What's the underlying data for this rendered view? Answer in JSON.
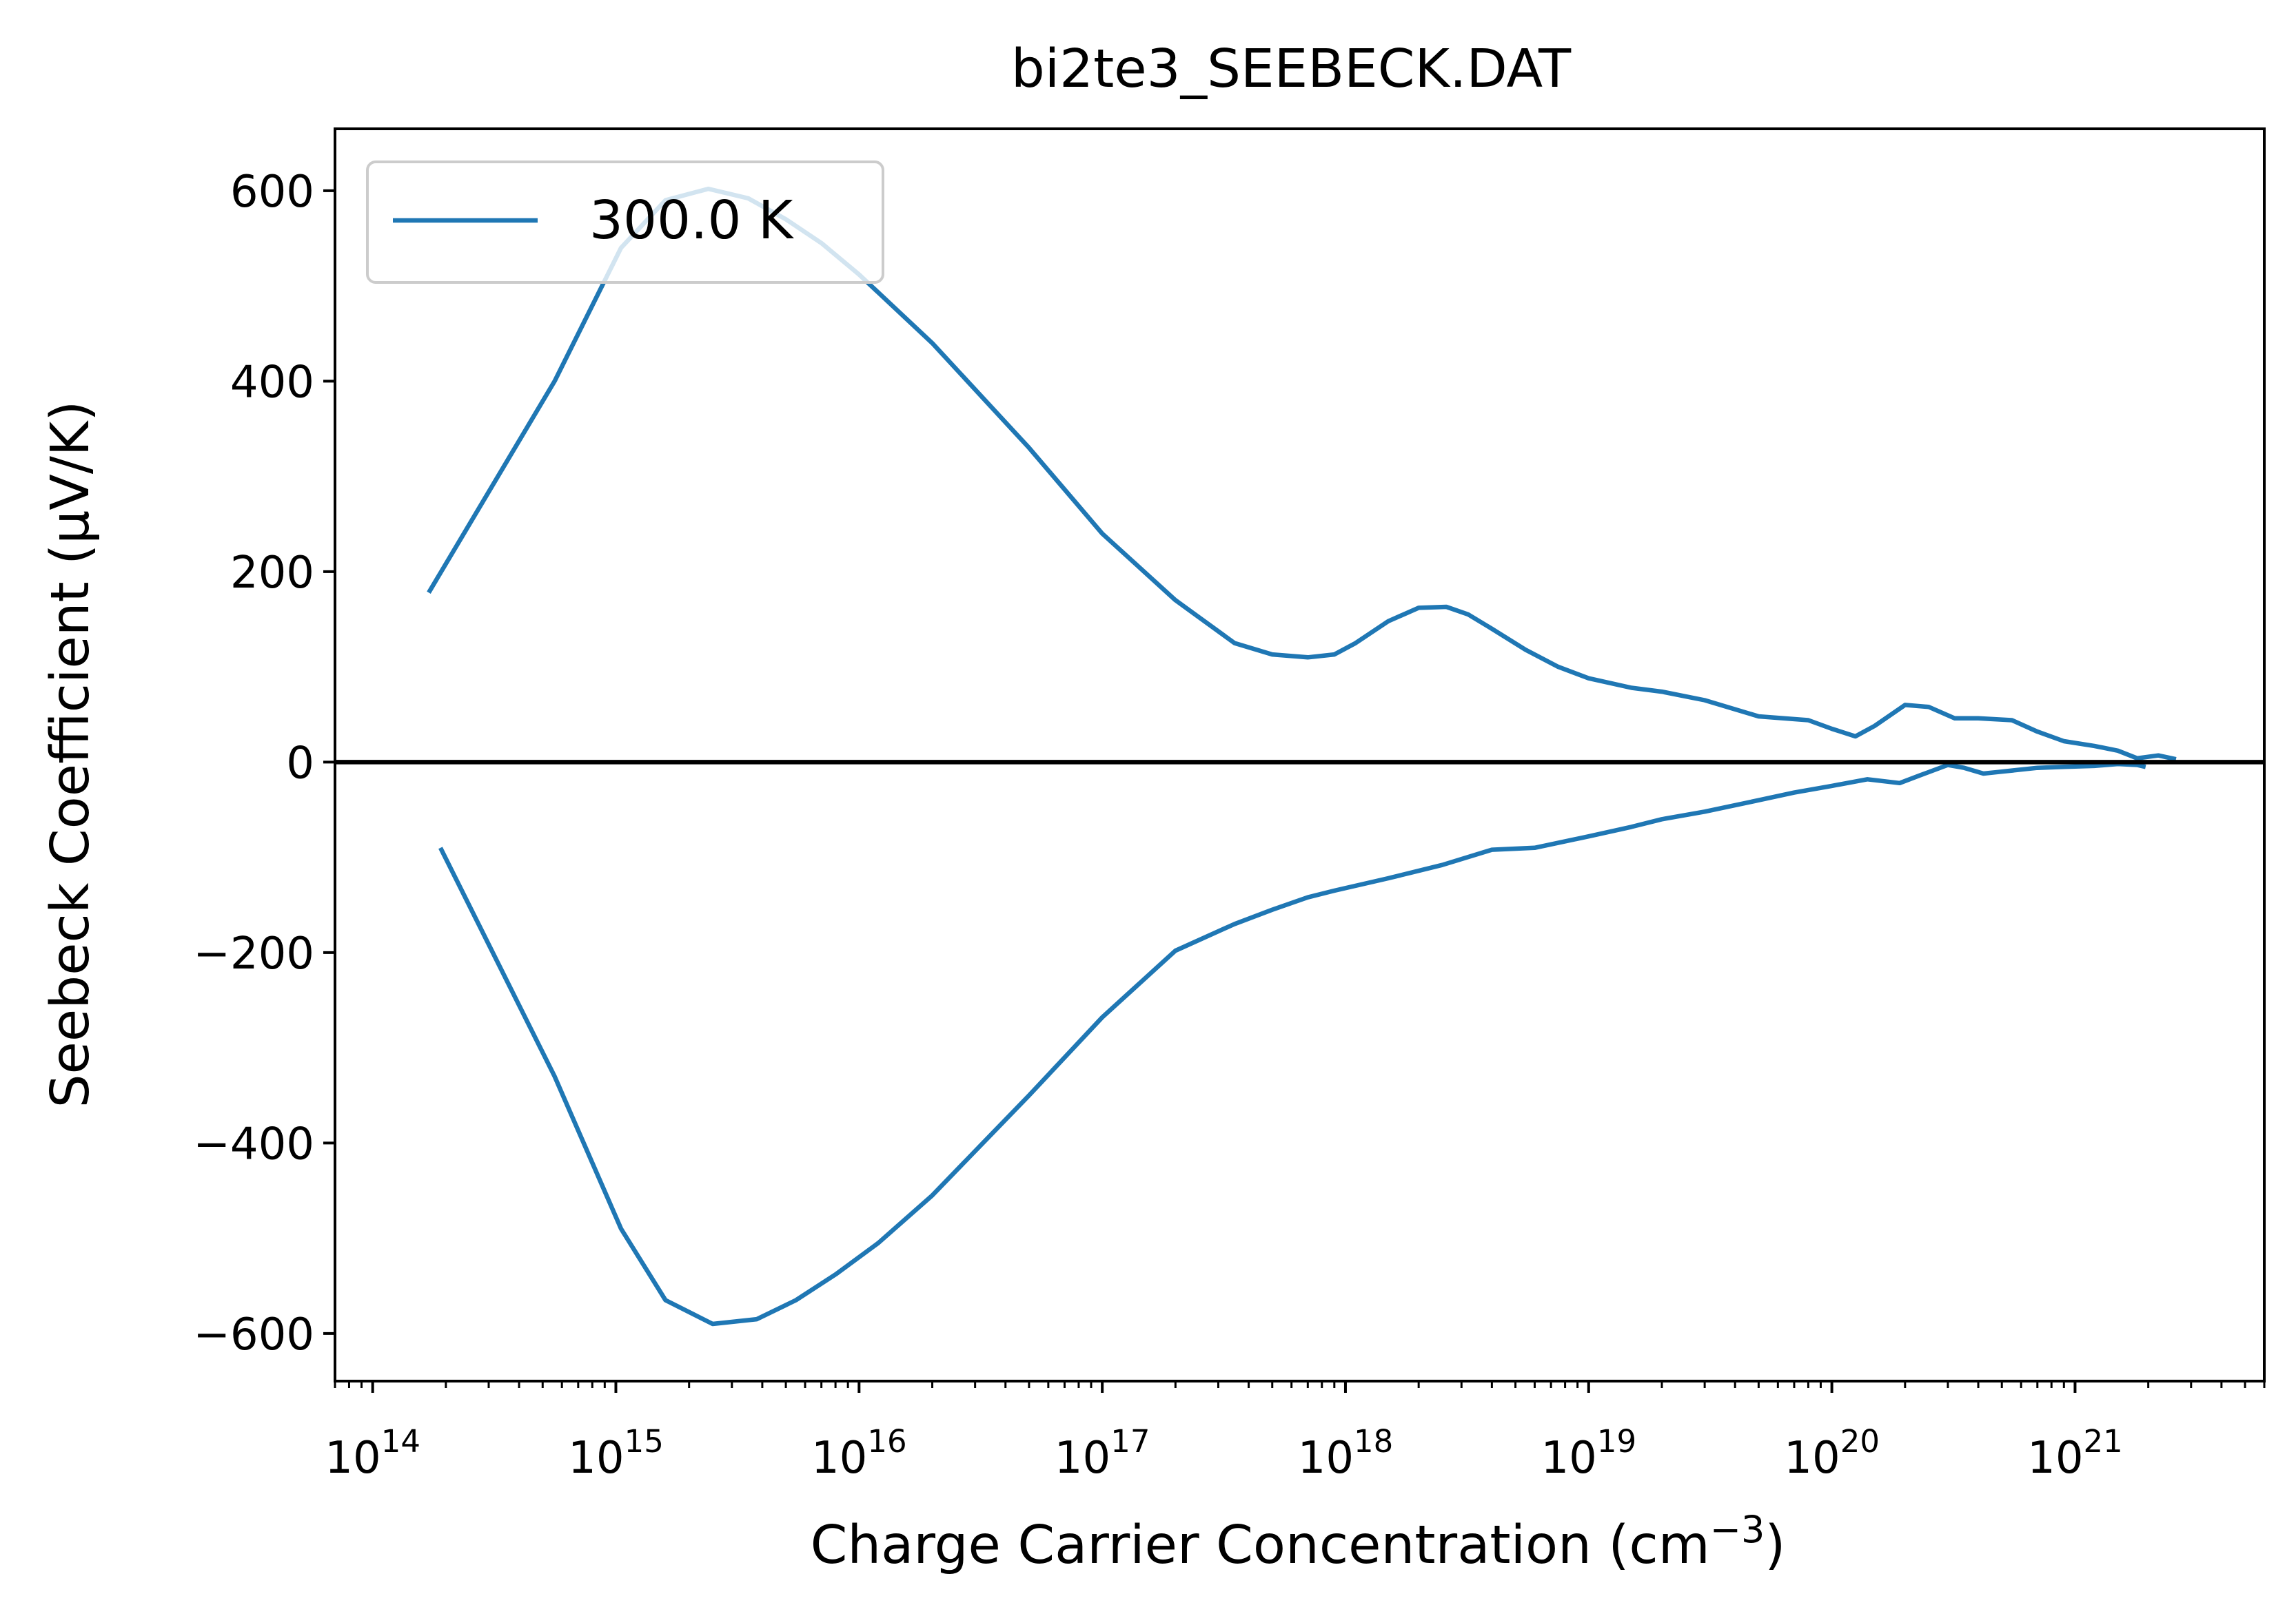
{
  "chart_data": {
    "type": "line",
    "title": "bi2te3_SEEBECK.DAT",
    "xlabel": "Charge Carrier Concentration (cm",
    "xlabel_sup": "−3",
    "xlabel_close": ")",
    "ylabel": "Seebeck Coefficient (μV/K)",
    "xscale": "log",
    "xlim": [
      70000000000000,
      6000000000000000000000
    ],
    "ylim": [
      -650,
      665
    ],
    "grid": false,
    "legend_position": "upper left",
    "x_major_ticks": [
      {
        "value": 100000000000000,
        "base": "10",
        "exp": "14"
      },
      {
        "value": 1000000000000000,
        "base": "10",
        "exp": "15"
      },
      {
        "value": 10000000000000000,
        "base": "10",
        "exp": "16"
      },
      {
        "value": 100000000000000000,
        "base": "10",
        "exp": "17"
      },
      {
        "value": 1000000000000000000,
        "base": "10",
        "exp": "18"
      },
      {
        "value": 10000000000000000000,
        "base": "10",
        "exp": "19"
      },
      {
        "value": 100000000000000000000,
        "base": "10",
        "exp": "20"
      },
      {
        "value": 1000000000000000000000,
        "base": "10",
        "exp": "21"
      }
    ],
    "y_ticks": [
      {
        "value": 600,
        "label": "600"
      },
      {
        "value": 400,
        "label": "400"
      },
      {
        "value": 200,
        "label": "200"
      },
      {
        "value": 0,
        "label": "0"
      },
      {
        "value": -200,
        "label": "−200"
      },
      {
        "value": -400,
        "label": "−400"
      },
      {
        "value": -600,
        "label": "−600"
      }
    ],
    "reference_line": {
      "y": 0,
      "color": "#000000"
    },
    "series": [
      {
        "name": "300.0 K",
        "color": "#1f77b4",
        "branches": [
          {
            "x": [
              170000000000000,
              560000000000000,
              1050000000000000,
              1600000000000000,
              2400000000000000,
              3500000000000000,
              5000000000000000,
              7000000000000000,
              10000000000000000,
              20000000000000000,
              50000000000000000,
              100000000000000000,
              200000000000000000,
              350000000000000000,
              500000000000000000,
              700000000000000000,
              900000000000000000,
              1100000000000000000,
              1500000000000000000,
              2000000000000000000,
              2600000000000000000,
              3200000000000000000,
              4000000000000000000,
              5500000000000000000,
              7500000000000000000,
              10000000000000000000,
              15000000000000000000,
              20000000000000000000,
              30000000000000000000,
              50000000000000000000,
              80000000000000000000,
              100000000000000000000,
              125000000000000000000,
              150000000000000000000,
              200000000000000000000,
              250000000000000000000,
              320000000000000000000,
              400000000000000000000,
              550000000000000000000,
              700000000000000000000,
              900000000000000000000,
              1200000000000000000000,
              1500000000000000000000,
              1800000000000000000000,
              2200000000000000000000,
              2600000000000000000000
            ],
            "y": [
              178,
              400,
              540,
              590,
              602,
              592,
              570,
              545,
              512,
              440,
              330,
              240,
              170,
              125,
              113,
              110,
              113,
              125,
              148,
              162,
              163,
              155,
              140,
              118,
              100,
              88,
              78,
              74,
              65,
              48,
              44,
              35,
              27,
              38,
              60,
              58,
              46,
              46,
              44,
              32,
              22,
              17,
              12,
              4,
              7,
              3
            ]
          },
          {
            "x": [
              190000000000000,
              560000000000000,
              1050000000000000,
              1600000000000000,
              2500000000000000,
              3800000000000000,
              5500000000000000,
              8000000000000000,
              12000000000000000,
              20000000000000000,
              50000000000000000,
              100000000000000000,
              200000000000000000,
              350000000000000000,
              500000000000000000,
              700000000000000000,
              900000000000000000,
              1500000000000000000,
              2500000000000000000,
              4000000000000000000,
              6000000000000000000,
              10000000000000000000,
              15000000000000000000,
              20000000000000000000,
              30000000000000000000,
              50000000000000000000,
              70000000000000000000,
              100000000000000000000,
              140000000000000000000,
              190000000000000000000,
              230000000000000000000,
              300000000000000000000,
              350000000000000000000,
              420000000000000000000,
              500000000000000000000,
              700000000000000000000,
              900000000000000000000,
              1200000000000000000000,
              1500000000000000000000,
              1800000000000000000000,
              1950000000000000000000
            ],
            "y": [
              -90,
              -330,
              -490,
              -565,
              -590,
              -585,
              -565,
              -538,
              -505,
              -455,
              -350,
              -268,
              -198,
              -170,
              -155,
              -142,
              -135,
              -122,
              -108,
              -92,
              -90,
              -78,
              -68,
              -60,
              -52,
              -40,
              -32,
              -25,
              -18,
              -22,
              -14,
              -3,
              -6,
              -12,
              -10,
              -6,
              -5,
              -4,
              -2,
              -3,
              -5
            ]
          }
        ]
      }
    ]
  }
}
